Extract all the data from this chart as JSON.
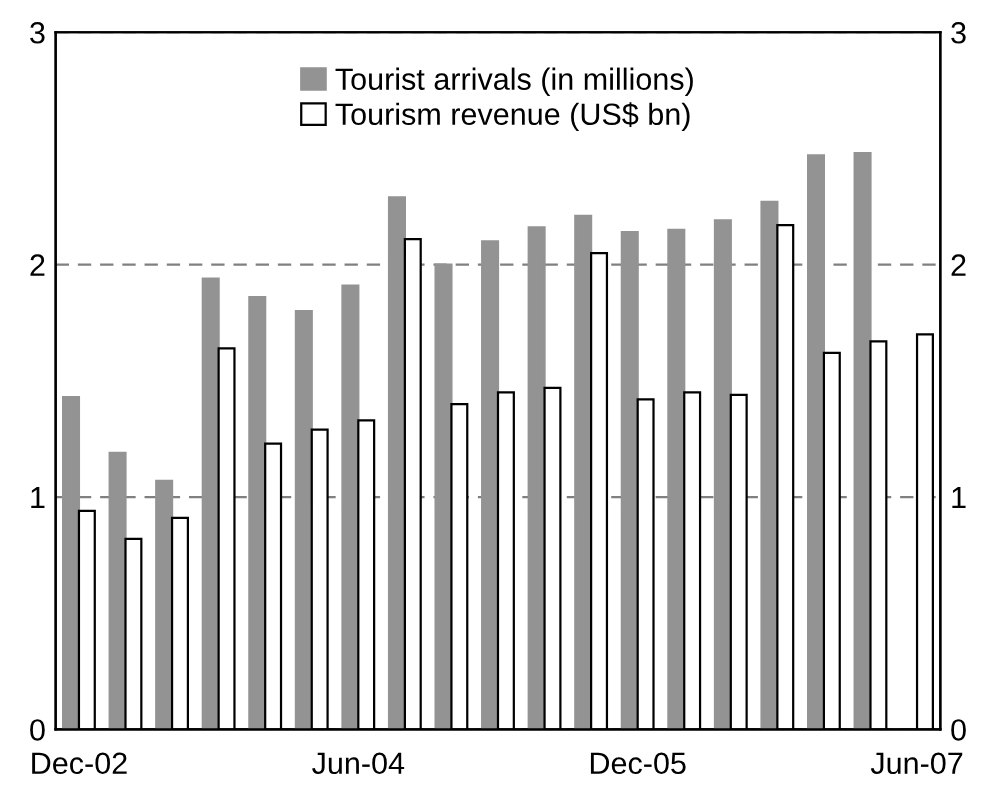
{
  "chart_data": {
    "type": "bar",
    "categories": [
      "Dec-02",
      null,
      null,
      null,
      null,
      null,
      "Jun-04",
      null,
      null,
      null,
      null,
      null,
      "Dec-05",
      null,
      null,
      null,
      null,
      null,
      "Jun-07"
    ],
    "series": [
      {
        "name": "Tourist arrivals (in millions)",
        "color": "#939393",
        "values": [
          1.43,
          1.19,
          1.07,
          1.94,
          1.86,
          1.8,
          1.91,
          2.29,
          2.0,
          2.1,
          2.16,
          2.21,
          2.14,
          2.15,
          2.19,
          2.27,
          2.47,
          2.48,
          null
        ]
      },
      {
        "name": "Tourism revenue (US$ bn)",
        "color": "#ffffff",
        "values": [
          0.94,
          0.82,
          0.91,
          1.64,
          1.23,
          1.29,
          1.33,
          2.11,
          1.4,
          1.45,
          1.47,
          2.05,
          1.42,
          1.45,
          1.44,
          2.17,
          1.62,
          1.67,
          1.7
        ]
      }
    ],
    "ylim": [
      0,
      3
    ],
    "yticks": [
      0,
      1,
      2,
      3
    ],
    "y2lim": [
      0,
      3
    ],
    "y2ticks": [
      0,
      1,
      2,
      3
    ],
    "grid": "y",
    "line_style": "dashed",
    "legend": "top"
  }
}
